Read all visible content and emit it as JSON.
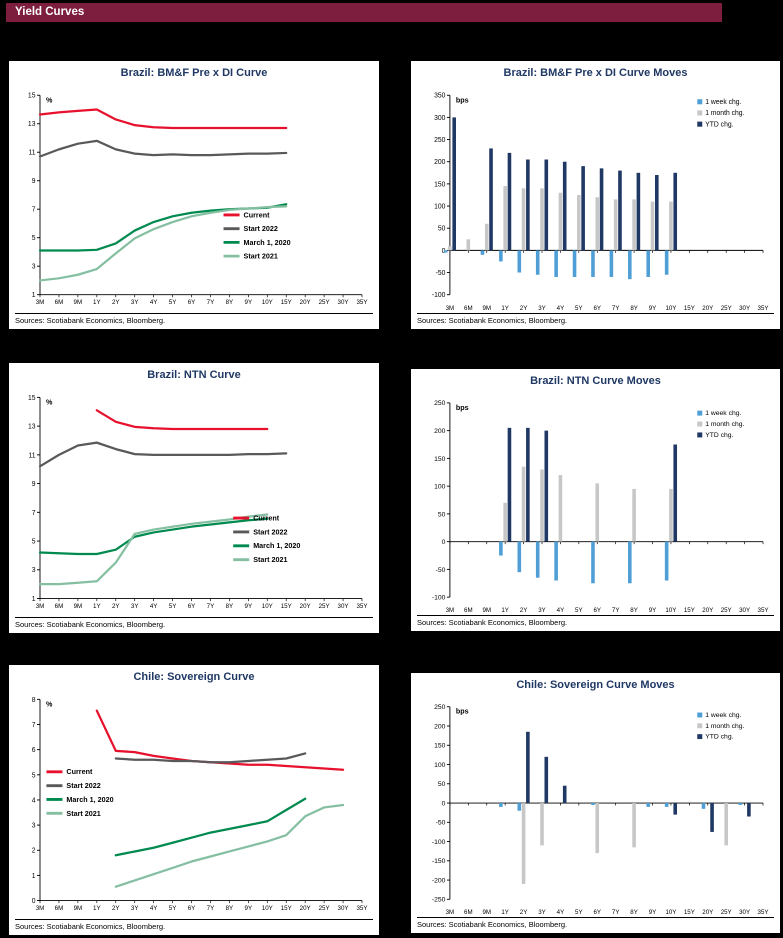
{
  "header": {
    "title": "Yield Curves"
  },
  "colors": {
    "header_bg": "#7d1e3f",
    "page_bg": "#000000",
    "panel_bg": "#ffffff",
    "title_text": "#1f3864",
    "current_red": "#e8112d",
    "start2022_gray": "#58595b",
    "march2020_green": "#008a4f",
    "start2021_lightgreen": "#85bfa1",
    "week_blue": "#4f9fd6",
    "month_gray": "#c7c7c7",
    "ytd_navy": "#1f3864"
  },
  "chart_data": [
    {
      "type": "line",
      "title": "Brazil: BM&F Pre x DI Curve",
      "source": "Sources: Scotiabank Economics, Bloomberg.",
      "ylabel": "%",
      "xlabel": "",
      "ylim": [
        1,
        15
      ],
      "yticks": [
        1,
        3,
        5,
        7,
        9,
        11,
        13,
        15
      ],
      "grid": false,
      "legend": {
        "position": "inside-right",
        "x": 0.57,
        "y": 0.6
      },
      "categories": [
        "3M",
        "6M",
        "9M",
        "1Y",
        "2Y",
        "3Y",
        "4Y",
        "5Y",
        "6Y",
        "7Y",
        "8Y",
        "9Y",
        "10Y",
        "15Y",
        "20Y",
        "25Y",
        "30Y",
        "35Y"
      ],
      "series": [
        {
          "name": "Current",
          "color": "#e8112d",
          "values": [
            13.65,
            13.8,
            13.9,
            14.0,
            13.3,
            12.9,
            12.75,
            12.7,
            12.7,
            12.7,
            12.7,
            12.7,
            12.7,
            12.7,
            null,
            null,
            null,
            null
          ]
        },
        {
          "name": "Start 2022",
          "color": "#58595b",
          "values": [
            10.7,
            11.2,
            11.6,
            11.8,
            11.2,
            10.9,
            10.8,
            10.85,
            10.8,
            10.8,
            10.85,
            10.9,
            10.9,
            10.95,
            null,
            null,
            null,
            null
          ]
        },
        {
          "name": "March 1, 2020",
          "color": "#008a4f",
          "values": [
            4.1,
            4.1,
            4.1,
            4.15,
            4.6,
            5.5,
            6.1,
            6.5,
            6.75,
            6.9,
            7.0,
            7.05,
            7.1,
            7.35,
            null,
            null,
            null,
            null
          ]
        },
        {
          "name": "Start 2021",
          "color": "#85bfa1",
          "values": [
            2.0,
            2.15,
            2.4,
            2.8,
            3.9,
            4.95,
            5.6,
            6.1,
            6.5,
            6.75,
            6.95,
            7.05,
            7.15,
            7.2,
            null,
            null,
            null,
            null
          ]
        }
      ]
    },
    {
      "type": "bar",
      "title": "Brazil: BM&F Pre x DI Curve Moves",
      "source": "Sources: Scotiabank Economics, Bloomberg.",
      "ylabel": "bps",
      "xlabel": "",
      "ylim": [
        -100,
        350
      ],
      "yticks": [
        -100,
        -50,
        0,
        50,
        100,
        150,
        200,
        250,
        300,
        350
      ],
      "grid": false,
      "legend": {
        "position": "top-right",
        "x": 0.79,
        "y": 0.02
      },
      "categories": [
        "3M",
        "6M",
        "9M",
        "1Y",
        "2Y",
        "3Y",
        "4Y",
        "5Y",
        "6Y",
        "7Y",
        "8Y",
        "9Y",
        "10Y",
        "15Y",
        "20Y",
        "25Y",
        "30Y",
        "35Y"
      ],
      "series": [
        {
          "name": "1 week chg.",
          "color": "#4f9fd6",
          "values": [
            -5,
            null,
            -10,
            -25,
            -50,
            -55,
            -60,
            -60,
            -60,
            -60,
            -65,
            -60,
            -55,
            null,
            null,
            null,
            null,
            null
          ]
        },
        {
          "name": "1 month chg.",
          "color": "#c7c7c7",
          "values": [
            10,
            25,
            60,
            145,
            140,
            140,
            130,
            125,
            120,
            115,
            115,
            110,
            110,
            null,
            null,
            null,
            null,
            null
          ]
        },
        {
          "name": "YTD chg.",
          "color": "#1f3864",
          "values": [
            300,
            null,
            230,
            220,
            205,
            205,
            200,
            190,
            185,
            180,
            175,
            170,
            175,
            null,
            null,
            null,
            null,
            null
          ]
        }
      ]
    },
    {
      "type": "line",
      "title": "Brazil: NTN Curve",
      "source": "Sources: Scotiabank Economics, Bloomberg.",
      "ylabel": "%",
      "xlabel": "",
      "ylim": [
        1,
        15
      ],
      "yticks": [
        1,
        3,
        5,
        7,
        9,
        11,
        13,
        15
      ],
      "grid": false,
      "legend": {
        "position": "inside-right",
        "x": 0.6,
        "y": 0.6
      },
      "categories": [
        "3M",
        "6M",
        "9M",
        "1Y",
        "2Y",
        "3Y",
        "4Y",
        "5Y",
        "6Y",
        "7Y",
        "8Y",
        "9Y",
        "10Y",
        "15Y",
        "20Y",
        "25Y",
        "30Y",
        "35Y"
      ],
      "series": [
        {
          "name": "Current",
          "color": "#e8112d",
          "values": [
            null,
            null,
            null,
            14.1,
            13.3,
            12.95,
            12.85,
            12.8,
            12.8,
            12.8,
            12.8,
            12.8,
            12.8,
            null,
            null,
            null,
            null,
            null
          ]
        },
        {
          "name": "Start 2022",
          "color": "#58595b",
          "values": [
            10.2,
            11.0,
            11.65,
            11.85,
            11.4,
            11.05,
            11.0,
            11.0,
            11.0,
            11.0,
            11.0,
            11.05,
            11.05,
            11.1,
            null,
            null,
            null,
            null
          ]
        },
        {
          "name": "March 1, 2020",
          "color": "#008a4f",
          "values": [
            4.2,
            4.15,
            4.1,
            4.1,
            4.4,
            5.3,
            5.6,
            5.8,
            6.0,
            6.15,
            6.3,
            6.45,
            6.55,
            null,
            null,
            null,
            null,
            null
          ]
        },
        {
          "name": "Start 2021",
          "color": "#85bfa1",
          "values": [
            2.0,
            2.0,
            2.1,
            2.2,
            3.5,
            5.5,
            5.8,
            6.0,
            6.2,
            6.35,
            6.5,
            6.7,
            6.85,
            null,
            null,
            null,
            null,
            null
          ]
        }
      ]
    },
    {
      "type": "bar",
      "title": "Brazil: NTN Curve Moves",
      "source": "Sources: Scotiabank Economics, Bloomberg.",
      "ylabel": "bps",
      "xlabel": "",
      "ylim": [
        -100,
        250
      ],
      "yticks": [
        -100,
        -50,
        0,
        50,
        100,
        150,
        200,
        250
      ],
      "grid": false,
      "legend": {
        "position": "top-right",
        "x": 0.79,
        "y": 0.04
      },
      "categories": [
        "3M",
        "6M",
        "9M",
        "1Y",
        "2Y",
        "3Y",
        "4Y",
        "5Y",
        "6Y",
        "7Y",
        "8Y",
        "9Y",
        "10Y",
        "15Y",
        "20Y",
        "25Y",
        "30Y",
        "35Y"
      ],
      "series": [
        {
          "name": "1 week chg.",
          "color": "#4f9fd6",
          "values": [
            null,
            null,
            null,
            -25,
            -55,
            -65,
            -70,
            null,
            -75,
            null,
            -75,
            null,
            -70,
            null,
            null,
            null,
            null,
            null
          ]
        },
        {
          "name": "1 month chg.",
          "color": "#c7c7c7",
          "values": [
            null,
            null,
            null,
            70,
            135,
            130,
            120,
            null,
            105,
            null,
            95,
            null,
            95,
            null,
            null,
            null,
            null,
            null
          ]
        },
        {
          "name": "YTD chg.",
          "color": "#1f3864",
          "values": [
            null,
            null,
            null,
            205,
            205,
            200,
            null,
            null,
            null,
            null,
            null,
            null,
            175,
            null,
            null,
            null,
            null,
            null
          ]
        }
      ]
    },
    {
      "type": "line",
      "title": "Chile: Sovereign Curve",
      "source": "Sources: Scotiabank Economics, Bloomberg.",
      "ylabel": "%",
      "xlabel": "",
      "ylim": [
        0,
        8
      ],
      "yticks": [
        0,
        1,
        2,
        3,
        4,
        5,
        6,
        7,
        8
      ],
      "grid": false,
      "legend": {
        "position": "inside-left",
        "x": 0.02,
        "y": 0.36
      },
      "categories": [
        "3M",
        "6M",
        "9M",
        "1Y",
        "2Y",
        "3Y",
        "4Y",
        "5Y",
        "6Y",
        "7Y",
        "8Y",
        "9Y",
        "10Y",
        "15Y",
        "20Y",
        "25Y",
        "30Y",
        "35Y"
      ],
      "series": [
        {
          "name": "Current",
          "color": "#e8112d",
          "values": [
            null,
            null,
            null,
            7.55,
            5.95,
            5.9,
            5.75,
            5.65,
            5.55,
            5.5,
            5.45,
            5.4,
            5.4,
            5.35,
            5.3,
            5.25,
            5.2,
            null
          ]
        },
        {
          "name": "Start 2022",
          "color": "#58595b",
          "values": [
            null,
            null,
            null,
            null,
            5.65,
            5.6,
            5.6,
            5.55,
            5.55,
            5.5,
            5.5,
            5.55,
            5.6,
            5.65,
            5.85,
            null,
            null,
            null
          ]
        },
        {
          "name": "March 1, 2020",
          "color": "#008a4f",
          "values": [
            null,
            null,
            null,
            null,
            1.8,
            1.95,
            2.1,
            2.3,
            2.5,
            2.7,
            2.85,
            3.0,
            3.15,
            3.6,
            4.05,
            null,
            null,
            null
          ]
        },
        {
          "name": "Start 2021",
          "color": "#85bfa1",
          "values": [
            null,
            null,
            null,
            null,
            0.55,
            0.8,
            1.05,
            1.3,
            1.55,
            1.75,
            1.95,
            2.15,
            2.35,
            2.6,
            3.35,
            3.7,
            3.8,
            null
          ]
        }
      ]
    },
    {
      "type": "bar",
      "title": "Chile: Sovereign Curve Moves",
      "source": "Sources: Scotiabank Economics, Bloomberg.",
      "ylabel": "bps",
      "xlabel": "",
      "ylim": [
        -250,
        250
      ],
      "yticks": [
        -250,
        -200,
        -150,
        -100,
        -50,
        0,
        50,
        100,
        150,
        200,
        250
      ],
      "grid": false,
      "legend": {
        "position": "top-right",
        "x": 0.79,
        "y": 0.03
      },
      "categories": [
        "3M",
        "6M",
        "9M",
        "1Y",
        "2Y",
        "3Y",
        "4Y",
        "5Y",
        "6Y",
        "7Y",
        "8Y",
        "9Y",
        "10Y",
        "15Y",
        "20Y",
        "25Y",
        "30Y",
        "35Y"
      ],
      "series": [
        {
          "name": "1 week chg.",
          "color": "#4f9fd6",
          "values": [
            null,
            null,
            null,
            -10,
            -20,
            null,
            null,
            null,
            -5,
            null,
            null,
            -10,
            -10,
            null,
            -15,
            null,
            -5,
            null
          ]
        },
        {
          "name": "1 month chg.",
          "color": "#c7c7c7",
          "values": [
            null,
            null,
            null,
            null,
            -210,
            -110,
            null,
            null,
            -130,
            null,
            -115,
            null,
            null,
            null,
            null,
            -110,
            null,
            null
          ]
        },
        {
          "name": "YTD chg.",
          "color": "#1f3864",
          "values": [
            null,
            null,
            null,
            null,
            185,
            120,
            45,
            null,
            null,
            null,
            null,
            null,
            -30,
            null,
            -75,
            null,
            -35,
            null
          ]
        }
      ]
    }
  ]
}
